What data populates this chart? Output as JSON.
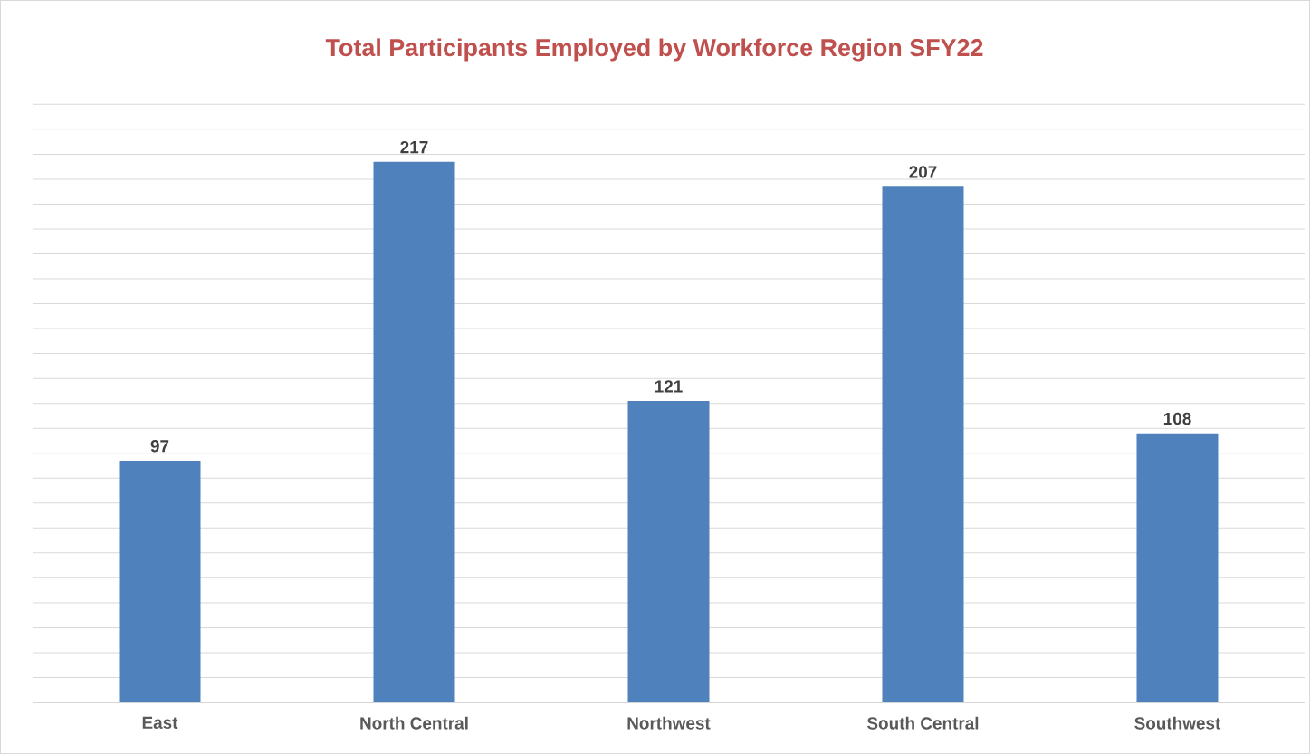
{
  "chart_data": {
    "type": "bar",
    "title": "Total Participants Employed by Workforce Region SFY22",
    "categories": [
      "East",
      "North Central",
      "Northwest",
      "South Central",
      "Southwest"
    ],
    "values": [
      97,
      217,
      121,
      207,
      108
    ],
    "color": "#4f81bd",
    "tick_labels": "x",
    "grid": "y",
    "data_labels": true
  }
}
